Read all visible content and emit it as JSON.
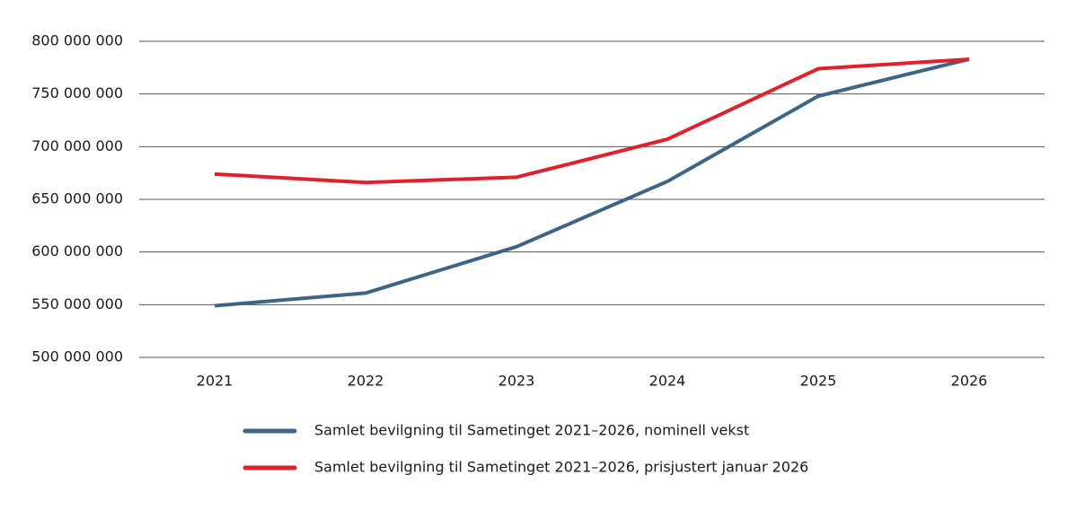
{
  "chart_data": {
    "type": "line",
    "categories": [
      "2021",
      "2022",
      "2023",
      "2024",
      "2025",
      "2026"
    ],
    "series": [
      {
        "name": "Samlet bevilgning til Sametinget 2021–2026, nominell vekst",
        "color": "#3d6587",
        "values": [
          549000000,
          561000000,
          605000000,
          667000000,
          748000000,
          783000000
        ]
      },
      {
        "name": "Samlet bevilgning til Sametinget 2021–2026, prisjustert januar 2026",
        "color": "#e3202a",
        "values": [
          674000000,
          666000000,
          671000000,
          707000000,
          774000000,
          783000000
        ]
      }
    ],
    "ylim": [
      500000000,
      800000000
    ],
    "yticks": [
      {
        "value": 500000000,
        "label": "500 000 000"
      },
      {
        "value": 550000000,
        "label": "550 000 000"
      },
      {
        "value": 600000000,
        "label": "600 000 000"
      },
      {
        "value": 650000000,
        "label": "650 000 000"
      },
      {
        "value": 700000000,
        "label": "700 000 000"
      },
      {
        "value": 750000000,
        "label": "750 000 000"
      },
      {
        "value": 800000000,
        "label": "800 000 000"
      }
    ],
    "grid": true
  }
}
